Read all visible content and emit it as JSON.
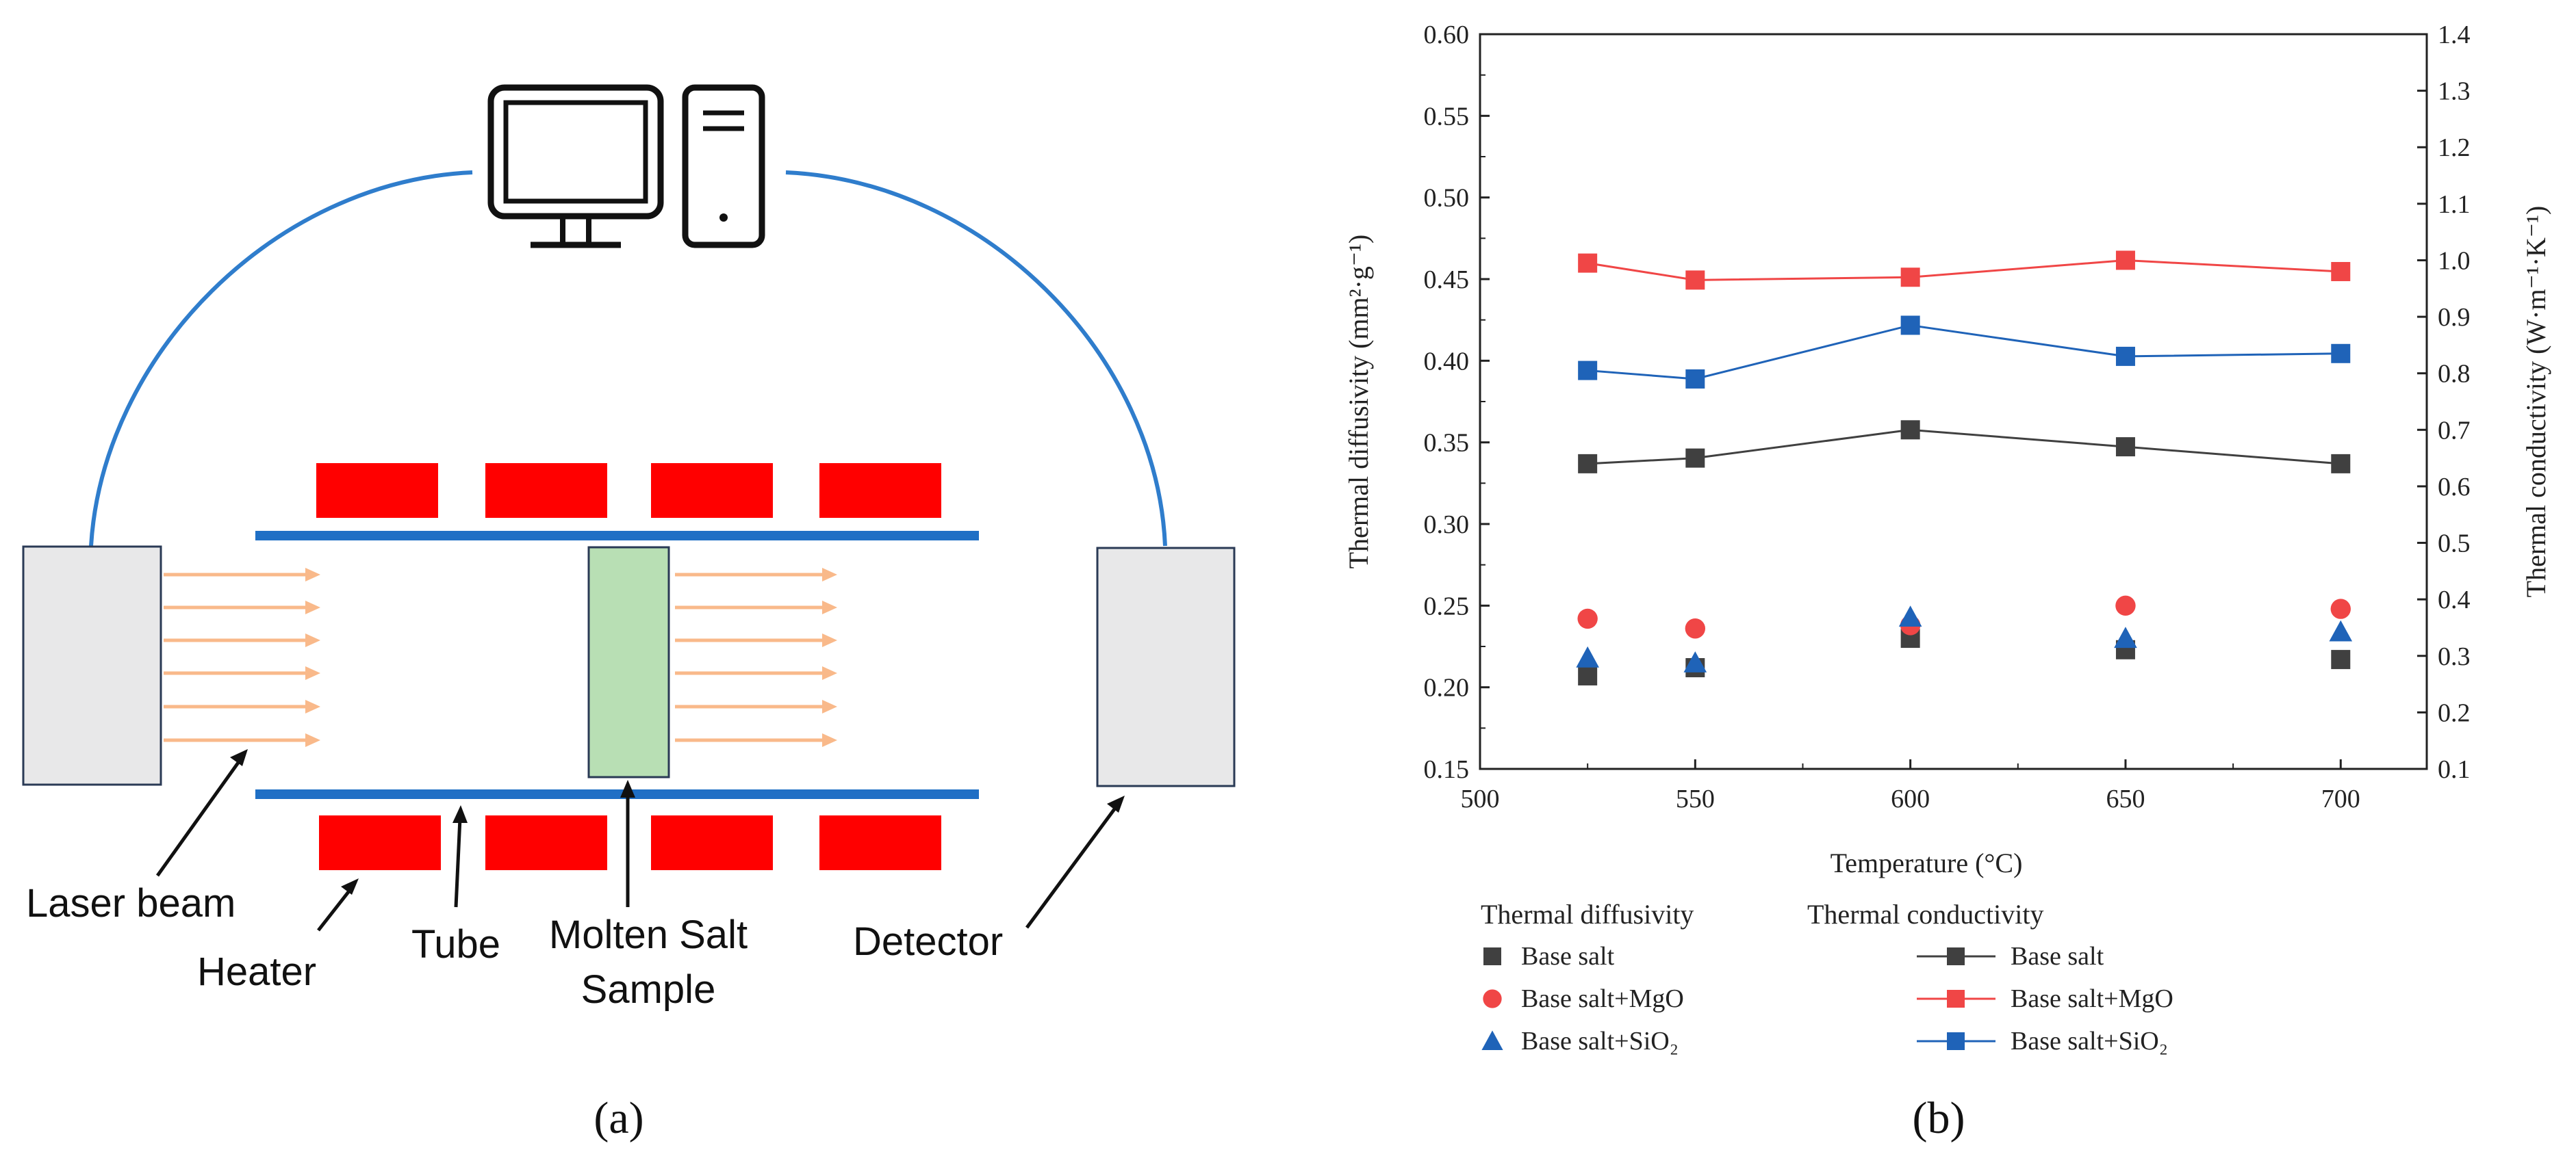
{
  "diagram": {
    "caption": "(a)",
    "labels": {
      "laser_beam": "Laser beam",
      "heater": "Heater",
      "tube": "Tube",
      "molten_salt_line1": "Molten Salt",
      "molten_salt_line2": "Sample",
      "detector": "Detector"
    },
    "colors": {
      "heater": "#ff0000",
      "tube": "#1f6fc5",
      "sample": "#b8dfb4",
      "device": "#e8e8e9",
      "arrow": "#f9b98a",
      "cable": "#2f7dcc"
    }
  },
  "chart_data": {
    "type": "scatter",
    "caption": "(b)",
    "xlabel": "Temperature (°C)",
    "ylabel_left": "Thermal diffusivity (mm²·g⁻¹)",
    "ylabel_right": "Thermal conductivity (W·m⁻¹·K⁻¹)",
    "xlim": [
      500,
      720
    ],
    "ylim_left": [
      0.15,
      0.6
    ],
    "ylim_right": [
      0.1,
      1.4
    ],
    "x_ticks": [
      "500",
      "550",
      "600",
      "650",
      "700"
    ],
    "y_left_ticks": [
      "0.15",
      "0.20",
      "0.25",
      "0.30",
      "0.35",
      "0.40",
      "0.45",
      "0.50",
      "0.55",
      "0.60"
    ],
    "y_right_ticks": [
      "0.1",
      "0.2",
      "0.3",
      "0.4",
      "0.5",
      "0.6",
      "0.7",
      "0.8",
      "0.9",
      "1.0",
      "1.1",
      "1.2",
      "1.3",
      "1.4"
    ],
    "x": [
      525,
      550,
      600,
      650,
      700
    ],
    "series": [
      {
        "name": "Base salt",
        "group": "Thermal diffusivity",
        "axis": "left",
        "kind": "marker",
        "marker": "square",
        "color": "#404040",
        "values": [
          0.207,
          0.212,
          0.23,
          0.223,
          0.217
        ]
      },
      {
        "name": "Base salt+MgO",
        "group": "Thermal diffusivity",
        "axis": "left",
        "kind": "marker",
        "marker": "circle",
        "color": "#f04646",
        "values": [
          0.242,
          0.236,
          0.238,
          0.25,
          0.248
        ]
      },
      {
        "name": "Base salt+SiO₂",
        "group": "Thermal diffusivity",
        "axis": "left",
        "kind": "marker",
        "marker": "triangle",
        "color": "#1f63b8",
        "values": [
          0.218,
          0.215,
          0.243,
          0.23,
          0.234
        ]
      },
      {
        "name": "Base salt",
        "group": "Thermal conductivity",
        "axis": "right",
        "kind": "line",
        "marker": "square",
        "color": "#404040",
        "values": [
          0.64,
          0.65,
          0.7,
          0.67,
          0.64
        ]
      },
      {
        "name": "Base salt+MgO",
        "group": "Thermal conductivity",
        "axis": "right",
        "kind": "line",
        "marker": "square",
        "color": "#f04646",
        "values": [
          0.995,
          0.965,
          0.97,
          1.0,
          0.98
        ]
      },
      {
        "name": "Base salt+SiO₂",
        "group": "Thermal conductivity",
        "axis": "right",
        "kind": "line",
        "marker": "square",
        "color": "#1f63b8",
        "values": [
          0.805,
          0.79,
          0.885,
          0.83,
          0.835
        ]
      }
    ],
    "legend": {
      "heading_left": "Thermal diffusivity",
      "heading_right": "Thermal conductivity",
      "placement": "bottom"
    }
  }
}
